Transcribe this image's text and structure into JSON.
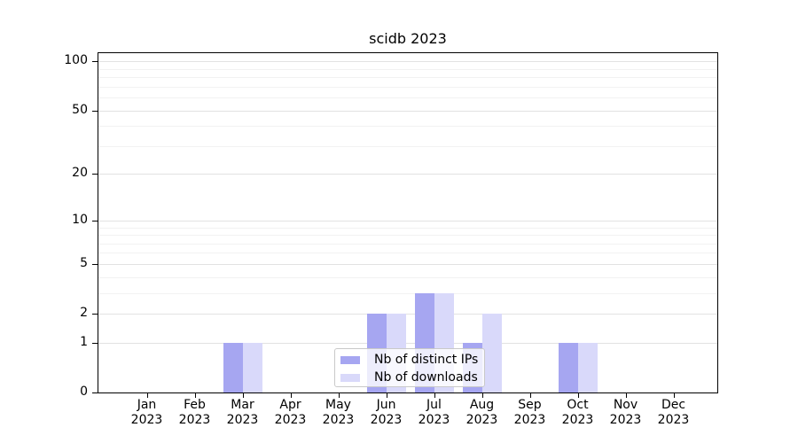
{
  "chart_data": {
    "type": "bar",
    "title": "scidb 2023",
    "categories": [
      {
        "month": "Jan",
        "year": "2023"
      },
      {
        "month": "Feb",
        "year": "2023"
      },
      {
        "month": "Mar",
        "year": "2023"
      },
      {
        "month": "Apr",
        "year": "2023"
      },
      {
        "month": "May",
        "year": "2023"
      },
      {
        "month": "Jun",
        "year": "2023"
      },
      {
        "month": "Jul",
        "year": "2023"
      },
      {
        "month": "Aug",
        "year": "2023"
      },
      {
        "month": "Sep",
        "year": "2023"
      },
      {
        "month": "Oct",
        "year": "2023"
      },
      {
        "month": "Nov",
        "year": "2023"
      },
      {
        "month": "Dec",
        "year": "2023"
      }
    ],
    "series": [
      {
        "name": "Nb of distinct IPs",
        "color": "#a6a6f1",
        "values": [
          0,
          0,
          1,
          0,
          0,
          2,
          3,
          1,
          0,
          1,
          0,
          0
        ]
      },
      {
        "name": "Nb of downloads",
        "color": "#d9d9fa",
        "values": [
          0,
          0,
          1,
          0,
          0,
          2,
          3,
          2,
          0,
          1,
          0,
          0
        ]
      }
    ],
    "yticks": [
      0,
      1,
      2,
      5,
      10,
      20,
      50,
      100
    ],
    "minor_yticks": [
      3,
      4,
      6,
      7,
      8,
      9,
      30,
      40,
      60,
      70,
      80,
      90
    ],
    "yscale": "log1p",
    "ylim": [
      0,
      113
    ],
    "grid": true,
    "legend_position": "lower center"
  },
  "colors": {
    "major_grid": "#e2e2e2",
    "minor_grid": "#f2f2f2",
    "spine": "#000000",
    "legend_border": "#c9c9c9"
  }
}
